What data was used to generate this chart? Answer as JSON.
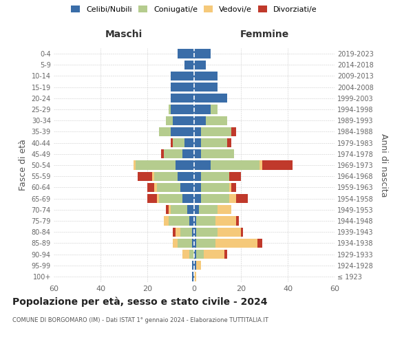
{
  "age_groups": [
    "100+",
    "95-99",
    "90-94",
    "85-89",
    "80-84",
    "75-79",
    "70-74",
    "65-69",
    "60-64",
    "55-59",
    "50-54",
    "45-49",
    "40-44",
    "35-39",
    "30-34",
    "25-29",
    "20-24",
    "15-19",
    "10-14",
    "5-9",
    "0-4"
  ],
  "birth_years": [
    "≤ 1923",
    "1924-1928",
    "1929-1933",
    "1934-1938",
    "1939-1943",
    "1944-1948",
    "1949-1953",
    "1954-1958",
    "1959-1963",
    "1964-1968",
    "1969-1973",
    "1974-1978",
    "1979-1983",
    "1984-1988",
    "1989-1993",
    "1994-1998",
    "1999-2003",
    "2004-2008",
    "2009-2013",
    "2014-2018",
    "2019-2023"
  ],
  "colors": {
    "celibi": "#3a6da8",
    "coniugati": "#b5cc8e",
    "vedovi": "#f5c97a",
    "divorziati": "#c0392b"
  },
  "maschi": {
    "celibi": [
      1,
      1,
      0,
      1,
      1,
      2,
      3,
      5,
      6,
      7,
      8,
      5,
      4,
      10,
      9,
      10,
      10,
      10,
      10,
      4,
      7
    ],
    "coniugati": [
      0,
      0,
      2,
      6,
      5,
      9,
      7,
      10,
      10,
      10,
      17,
      8,
      5,
      5,
      3,
      1,
      0,
      0,
      0,
      0,
      0
    ],
    "vedovi": [
      0,
      0,
      3,
      2,
      2,
      2,
      1,
      1,
      1,
      1,
      1,
      0,
      0,
      0,
      0,
      0,
      0,
      0,
      0,
      0,
      0
    ],
    "divorziati": [
      0,
      0,
      0,
      0,
      1,
      0,
      1,
      4,
      3,
      6,
      0,
      1,
      1,
      0,
      0,
      0,
      0,
      0,
      0,
      0,
      0
    ]
  },
  "femmine": {
    "celibi": [
      0,
      1,
      1,
      1,
      1,
      1,
      2,
      3,
      3,
      3,
      7,
      3,
      3,
      3,
      5,
      7,
      14,
      10,
      10,
      5,
      7
    ],
    "coniugati": [
      0,
      0,
      3,
      8,
      9,
      8,
      8,
      12,
      12,
      12,
      21,
      14,
      11,
      13,
      9,
      3,
      0,
      0,
      0,
      0,
      0
    ],
    "vedovi": [
      1,
      2,
      9,
      18,
      10,
      9,
      6,
      3,
      1,
      0,
      1,
      0,
      0,
      0,
      0,
      0,
      0,
      0,
      0,
      0,
      0
    ],
    "divorziati": [
      0,
      0,
      1,
      2,
      1,
      1,
      0,
      5,
      2,
      5,
      13,
      0,
      2,
      2,
      0,
      0,
      0,
      0,
      0,
      0,
      0
    ]
  },
  "title": "Popolazione per età, sesso e stato civile - 2024",
  "subtitle": "COMUNE DI BORGOMARO (IM) - Dati ISTAT 1° gennaio 2024 - Elaborazione TUTTITALIA.IT",
  "xlabel_left": "Maschi",
  "xlabel_right": "Femmine",
  "ylabel_left": "Fasce di età",
  "ylabel_right": "Anni di nascita",
  "xlim": 60,
  "legend_labels": [
    "Celibi/Nubili",
    "Coniugati/e",
    "Vedovi/e",
    "Divorziati/e"
  ]
}
